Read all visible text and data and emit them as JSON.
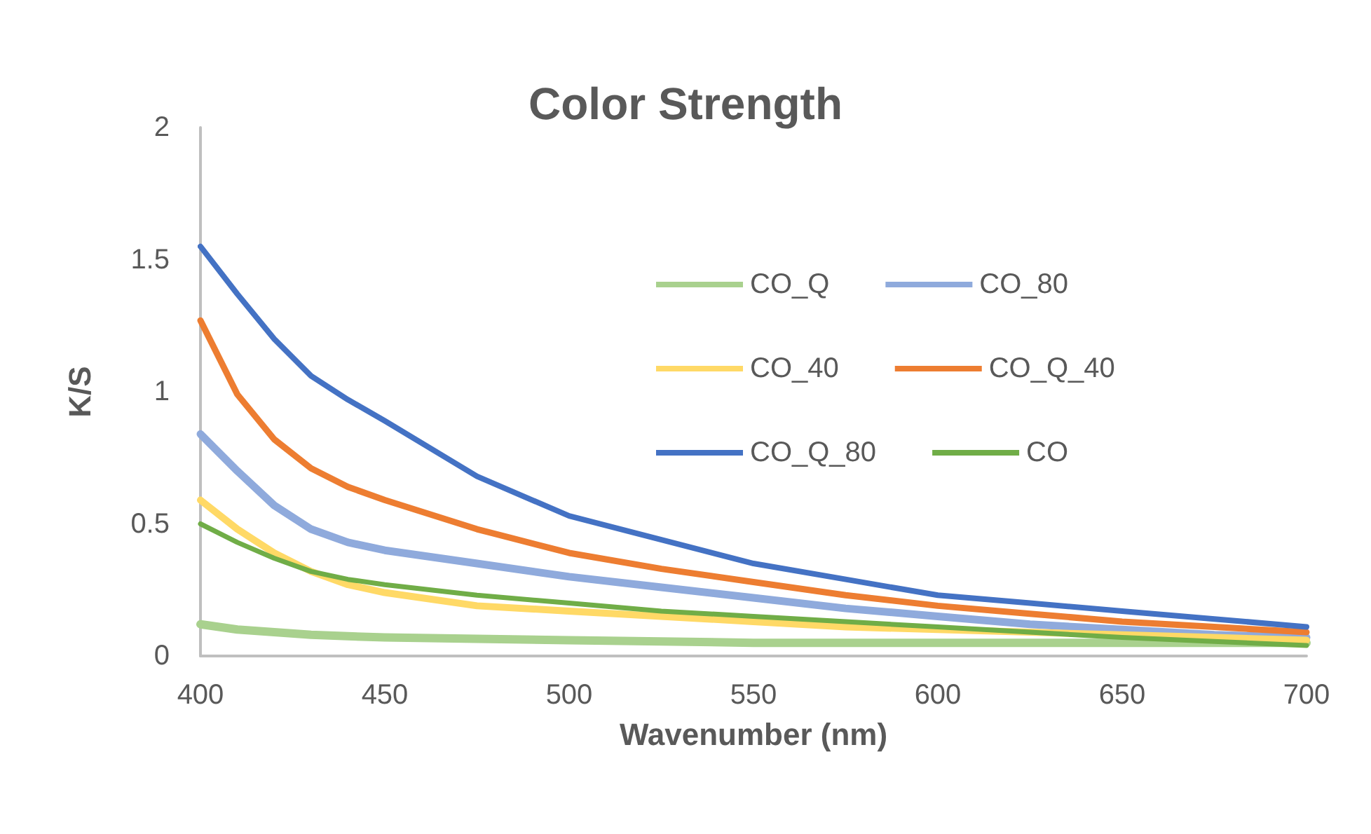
{
  "chart_data": {
    "type": "line",
    "title": "Color Strength",
    "xlabel": "Wavenumber (nm)",
    "ylabel": "K/S",
    "x": [
      400,
      410,
      420,
      430,
      440,
      450,
      475,
      500,
      525,
      550,
      575,
      600,
      625,
      650,
      675,
      700
    ],
    "series": [
      {
        "name": "CO_Q",
        "color": "#a9d18e",
        "values": [
          0.12,
          0.1,
          0.09,
          0.08,
          0.075,
          0.07,
          0.065,
          0.06,
          0.055,
          0.05,
          0.05,
          0.05,
          0.05,
          0.05,
          0.05,
          0.05
        ]
      },
      {
        "name": "CO_80",
        "color": "#8faadc",
        "values": [
          0.84,
          0.7,
          0.57,
          0.48,
          0.43,
          0.4,
          0.35,
          0.3,
          0.26,
          0.22,
          0.18,
          0.15,
          0.12,
          0.1,
          0.08,
          0.07
        ]
      },
      {
        "name": "CO_40",
        "color": "#ffd966",
        "values": [
          0.59,
          0.48,
          0.39,
          0.32,
          0.27,
          0.24,
          0.19,
          0.17,
          0.15,
          0.13,
          0.11,
          0.1,
          0.09,
          0.08,
          0.07,
          0.06
        ]
      },
      {
        "name": "CO_Q_40",
        "color": "#ed7d31",
        "values": [
          1.27,
          0.99,
          0.82,
          0.71,
          0.64,
          0.59,
          0.48,
          0.39,
          0.33,
          0.28,
          0.23,
          0.19,
          0.16,
          0.13,
          0.11,
          0.09
        ]
      },
      {
        "name": "CO_Q_80",
        "color": "#4472c4",
        "values": [
          1.55,
          1.37,
          1.2,
          1.06,
          0.97,
          0.89,
          0.68,
          0.53,
          0.44,
          0.35,
          0.29,
          0.23,
          0.2,
          0.17,
          0.14,
          0.11
        ]
      },
      {
        "name": "CO",
        "color": "#70ad47",
        "values": [
          0.5,
          0.43,
          0.37,
          0.32,
          0.29,
          0.27,
          0.23,
          0.2,
          0.17,
          0.15,
          0.13,
          0.11,
          0.09,
          0.07,
          0.055,
          0.04
        ]
      }
    ],
    "xlim": [
      400,
      700
    ],
    "xticks": [
      400,
      450,
      500,
      550,
      600,
      650,
      700
    ],
    "ylim": [
      0,
      2
    ],
    "yticks": [
      0,
      0.5,
      1,
      1.5,
      2
    ],
    "grid": false,
    "legend": "right",
    "marker": "none",
    "line_style": "solid"
  }
}
